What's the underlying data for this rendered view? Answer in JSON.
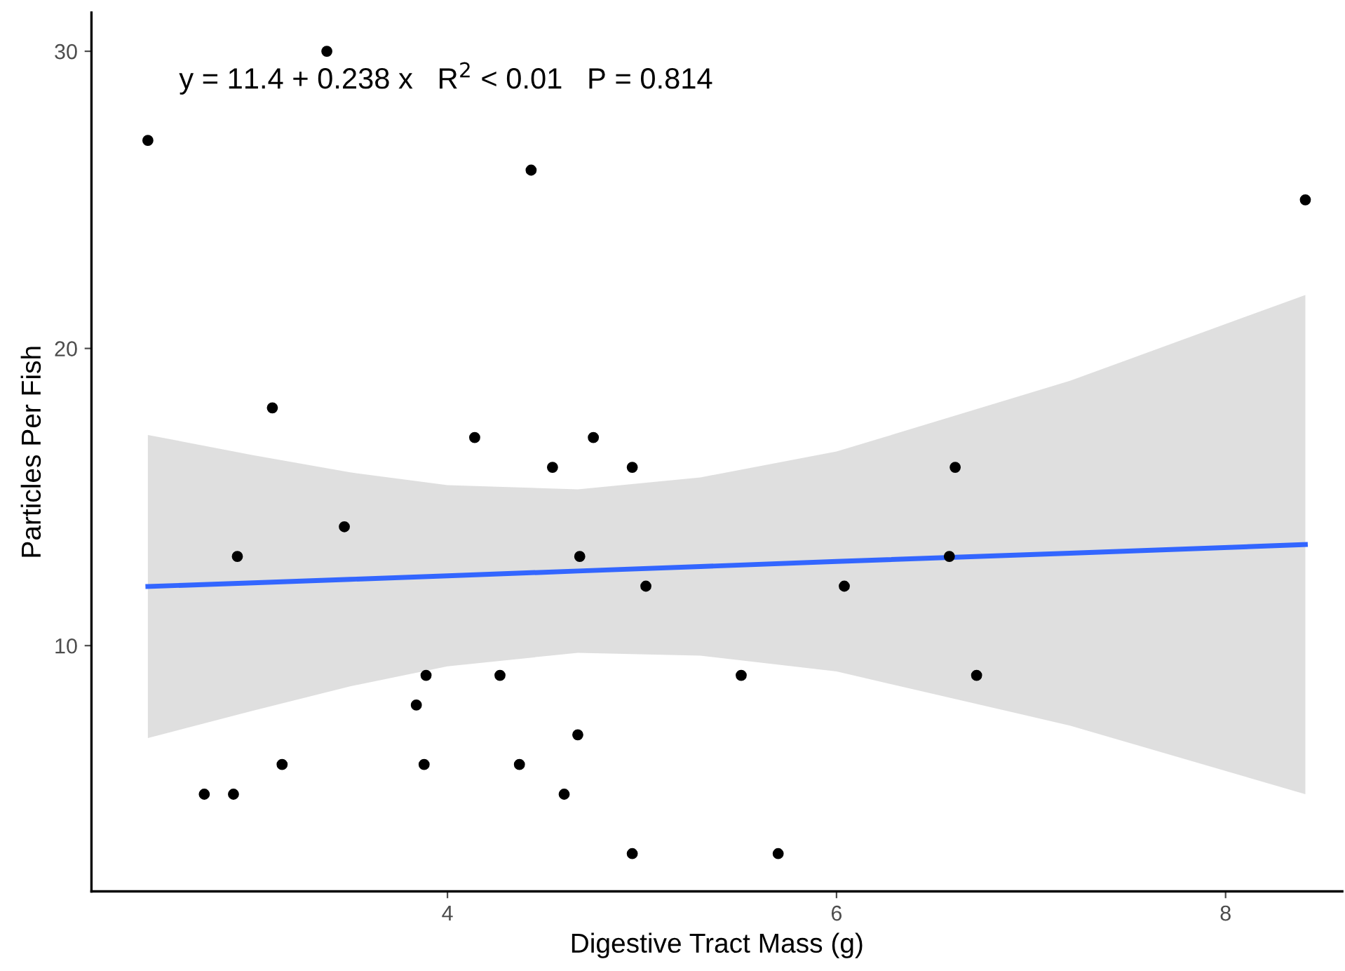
{
  "chart_data": {
    "type": "scatter",
    "xlabel": "Digestive Tract Mass (g)",
    "ylabel": "Particles Per Fish",
    "xlim": [
      2.17,
      8.6
    ],
    "xticks": [
      4,
      6,
      8
    ],
    "ylim": [
      1.73,
      31.3
    ],
    "yticks": [
      10,
      20,
      30
    ],
    "grid": false,
    "legend": false,
    "annotations": [
      "y = 11.4 + 0.238 x   R$^{2}$ < 0.01   P = 0.814"
    ],
    "series": [
      {
        "marker": "circle",
        "color": "#000000",
        "x": [
          2.46,
          3.38,
          4.43,
          8.41,
          3.1,
          4.14,
          4.75,
          4.54,
          4.95,
          6.61,
          3.47,
          2.92,
          4.68,
          6.58,
          5.02,
          6.04,
          3.89,
          4.27,
          5.51,
          6.72,
          3.84,
          4.67,
          3.15,
          3.88,
          4.37,
          2.75,
          2.9,
          4.6,
          4.95,
          5.7
        ],
        "values": [
          27,
          30,
          26,
          25,
          18,
          17,
          17,
          16,
          16,
          16,
          14,
          13,
          13,
          13,
          12,
          12,
          9,
          9,
          9,
          9,
          8,
          7,
          6,
          6,
          6,
          5,
          5,
          5,
          3,
          3
        ]
      },
      {
        "type": "line",
        "color": "#3366ff",
        "x": [
          2.46,
          3.0,
          3.5,
          4.0,
          4.67,
          5.3,
          6.0,
          7.2,
          8.41
        ],
        "values": [
          11.99,
          12.11,
          12.23,
          12.35,
          12.51,
          12.66,
          12.83,
          13.11,
          13.4
        ],
        "upper": [
          17.09,
          16.41,
          15.83,
          15.4,
          15.26,
          15.66,
          16.53,
          18.91,
          21.8
        ],
        "lower": [
          6.89,
          7.81,
          8.63,
          9.3,
          9.76,
          9.66,
          9.13,
          7.31,
          5.0
        ]
      }
    ]
  }
}
